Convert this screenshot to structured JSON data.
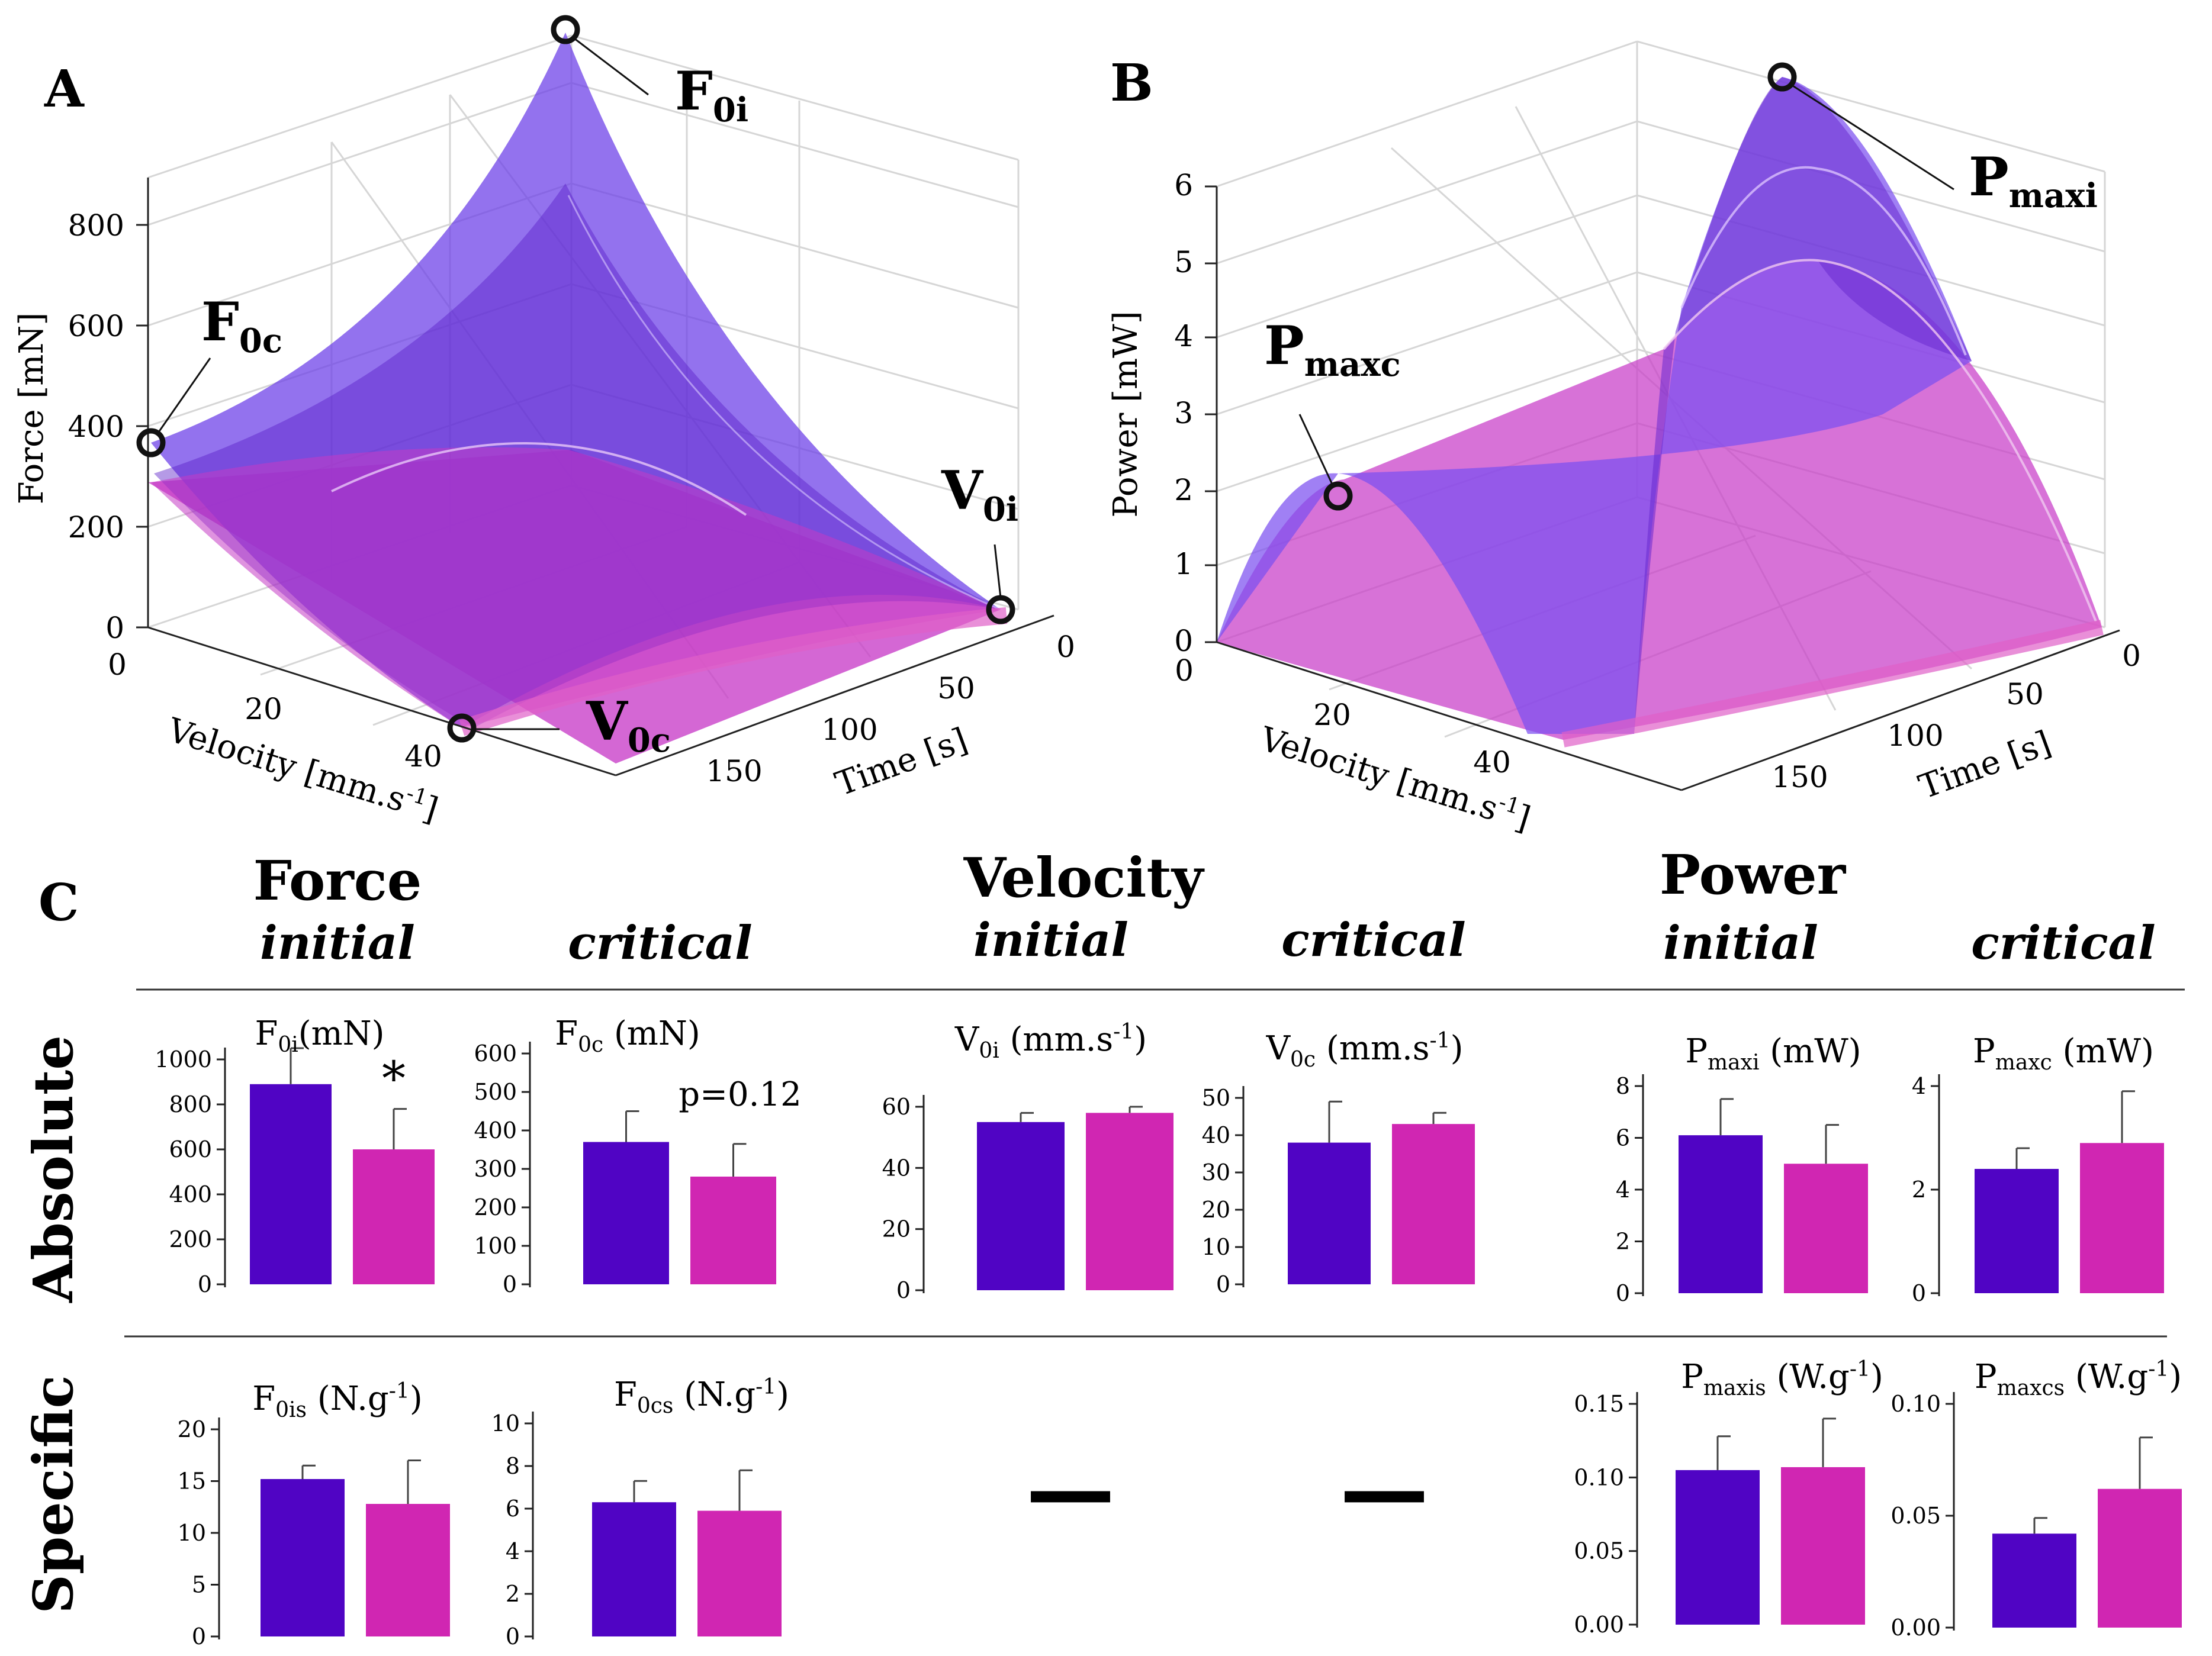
{
  "colors": {
    "initial": "#5004c4",
    "critical": "#d026b2",
    "surface_initial": "#7c4ff0",
    "surface_critical": "#c83cc8",
    "axis": "#222222",
    "grid": "#d6d6d6"
  },
  "panel_A": {
    "letter": "A",
    "z_label": "Force [mN]",
    "z_ticks": [
      "0",
      "200",
      "400",
      "600",
      "800"
    ],
    "vel_label": "Velocity [mm.s",
    "vel_sup": "-1",
    "vel_tail": "]",
    "vel_ticks": [
      "0",
      "20",
      "40"
    ],
    "time_label": "Time [s]",
    "time_ticks": [
      "0",
      "50",
      "100",
      "150"
    ],
    "callouts": [
      {
        "main": "F",
        "sub": "0i"
      },
      {
        "main": "F",
        "sub": "0c"
      },
      {
        "main": "V",
        "sub": "0i"
      },
      {
        "main": "V",
        "sub": "0c"
      }
    ]
  },
  "panel_B": {
    "letter": "B",
    "z_label": "Power [mW]",
    "z_ticks": [
      "0",
      "1",
      "2",
      "3",
      "4",
      "5",
      "6"
    ],
    "vel_label": "Velocity [mm.s",
    "vel_sup": "-1",
    "vel_tail": "]",
    "vel_ticks": [
      "0",
      "20",
      "40"
    ],
    "time_label": "Time [s]",
    "time_ticks": [
      "0",
      "50",
      "100",
      "150"
    ],
    "callouts": [
      {
        "main": "P",
        "sub": "maxi"
      },
      {
        "main": "P",
        "sub": "maxc"
      }
    ]
  },
  "panel_C": {
    "letter": "C",
    "groups": [
      {
        "title": "Force",
        "initial": "initial",
        "critical": "critical"
      },
      {
        "title": "Velocity",
        "initial": "initial",
        "critical": "critical"
      },
      {
        "title": "Power",
        "initial": "initial",
        "critical": "critical"
      }
    ],
    "rows": [
      "Absolute",
      "Specific"
    ],
    "missing_marker": "—"
  },
  "chart_data": [
    {
      "type": "bar",
      "title": "F",
      "sub": "0i",
      "unit": "(mN)",
      "ylim": [
        0,
        1000
      ],
      "yticks": [
        "0",
        "200",
        "400",
        "600",
        "800",
        "1000"
      ],
      "series": [
        {
          "name": "initial",
          "values": [
            890
          ],
          "err": [
            160
          ]
        },
        {
          "name": "critical",
          "values": [
            600
          ],
          "err": [
            180
          ]
        }
      ],
      "annotation": "*"
    },
    {
      "type": "bar",
      "title": "F",
      "sub": "0c",
      "unit": " (mN)",
      "ylim": [
        0,
        600
      ],
      "yticks": [
        "0",
        "100",
        "200",
        "300",
        "400",
        "500",
        "600"
      ],
      "series": [
        {
          "name": "initial",
          "values": [
            370
          ],
          "err": [
            80
          ]
        },
        {
          "name": "critical",
          "values": [
            280
          ],
          "err": [
            85
          ]
        }
      ],
      "annotation": "p=0.12"
    },
    {
      "type": "bar",
      "title": "V",
      "sub": "0i",
      "unit": " (mm.s",
      "sup": "-1",
      "tail": ")",
      "ylim": [
        0,
        60
      ],
      "yticks": [
        "0",
        "20",
        "40",
        "60"
      ],
      "series": [
        {
          "name": "initial",
          "values": [
            55
          ],
          "err": [
            3
          ]
        },
        {
          "name": "critical",
          "values": [
            58
          ],
          "err": [
            2
          ]
        }
      ]
    },
    {
      "type": "bar",
      "title": "V",
      "sub": "0c",
      "unit": " (mm.s",
      "sup": "-1",
      "tail": ")",
      "ylim": [
        0,
        50
      ],
      "yticks": [
        "0",
        "10",
        "20",
        "30",
        "40",
        "50"
      ],
      "series": [
        {
          "name": "initial",
          "values": [
            38
          ],
          "err": [
            11
          ]
        },
        {
          "name": "critical",
          "values": [
            43
          ],
          "err": [
            3
          ]
        }
      ]
    },
    {
      "type": "bar",
      "title": "P",
      "sub": "maxi",
      "unit": " (mW)",
      "ylim": [
        0,
        8
      ],
      "yticks": [
        "0",
        "2",
        "4",
        "6",
        "8"
      ],
      "series": [
        {
          "name": "initial",
          "values": [
            6.1
          ],
          "err": [
            1.4
          ]
        },
        {
          "name": "critical",
          "values": [
            5.0
          ],
          "err": [
            1.5
          ]
        }
      ]
    },
    {
      "type": "bar",
      "title": "P",
      "sub": "maxc",
      "unit": " (mW)",
      "ylim": [
        0,
        4
      ],
      "yticks": [
        "0",
        "2",
        "4"
      ],
      "series": [
        {
          "name": "initial",
          "values": [
            2.4
          ],
          "err": [
            0.4
          ]
        },
        {
          "name": "critical",
          "values": [
            2.9
          ],
          "err": [
            1.0
          ]
        }
      ]
    },
    {
      "type": "bar",
      "title": "F",
      "sub": "0is",
      "unit": " (N.g",
      "sup": "-1",
      "tail": ")",
      "ylim": [
        0,
        20
      ],
      "yticks": [
        "0",
        "5",
        "10",
        "15",
        "20"
      ],
      "series": [
        {
          "name": "initial",
          "values": [
            15.2
          ],
          "err": [
            1.3
          ]
        },
        {
          "name": "critical",
          "values": [
            12.8
          ],
          "err": [
            4.2
          ]
        }
      ]
    },
    {
      "type": "bar",
      "title": "F",
      "sub": "0cs",
      "unit": " (N.g",
      "sup": "-1",
      "tail": ")",
      "ylim": [
        0,
        10
      ],
      "yticks": [
        "0",
        "2",
        "4",
        "6",
        "8",
        "10"
      ],
      "series": [
        {
          "name": "initial",
          "values": [
            6.3
          ],
          "err": [
            1.0
          ]
        },
        {
          "name": "critical",
          "values": [
            5.9
          ],
          "err": [
            1.9
          ]
        }
      ]
    },
    {
      "type": "bar",
      "title": "P",
      "sub": "maxis",
      "unit": " (W.g",
      "sup": "-1",
      "tail": ")",
      "ylim": [
        0,
        0.15
      ],
      "yticks": [
        "0.00",
        "0.05",
        "0.10",
        "0.15"
      ],
      "series": [
        {
          "name": "initial",
          "values": [
            0.105
          ],
          "err": [
            0.023
          ]
        },
        {
          "name": "critical",
          "values": [
            0.107
          ],
          "err": [
            0.033
          ]
        }
      ]
    },
    {
      "type": "bar",
      "title": "P",
      "sub": "maxcs",
      "unit": " (W.g",
      "sup": "-1",
      "tail": ")",
      "ylim": [
        0,
        0.1
      ],
      "yticks": [
        "0.00",
        "0.05",
        "0.10"
      ],
      "series": [
        {
          "name": "initial",
          "values": [
            0.042
          ],
          "err": [
            0.007
          ]
        },
        {
          "name": "critical",
          "values": [
            0.062
          ],
          "err": [
            0.023
          ]
        }
      ]
    }
  ]
}
